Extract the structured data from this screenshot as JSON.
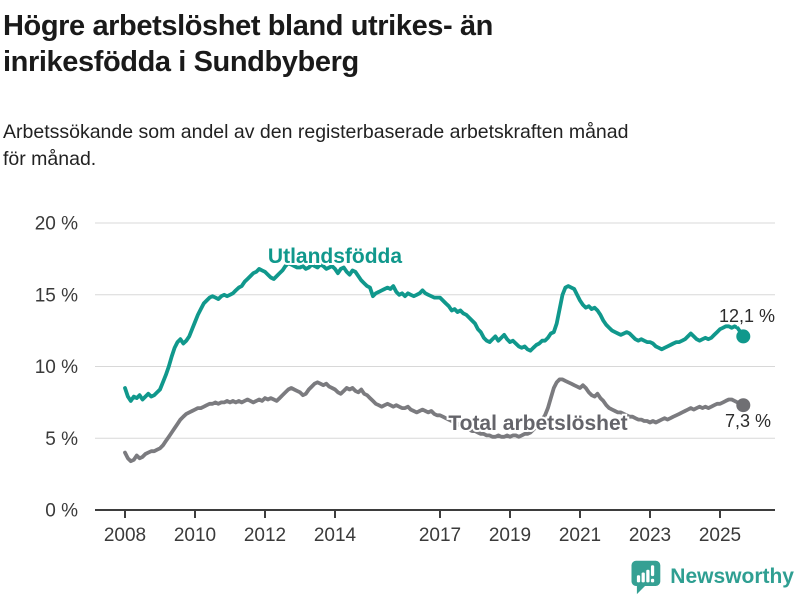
{
  "header": {
    "title_lines": [
      "Högre arbetslöshet bland utrikes- än",
      "inrikesfödda i Sundbyberg"
    ],
    "subtitle_lines": [
      "Arbetssökande som andel av den registerbaserade arbetskraften månad",
      "för månad."
    ]
  },
  "footer": {
    "brand": "Newsworthy",
    "logo_icon": "bar-chart-speech-bubble",
    "logo_color": "#35a093"
  },
  "colors": {
    "accent_teal": "#10988c",
    "gray_line": "#7b7b7f",
    "grid": "#d8d8d8",
    "axis": "#3d3d3d",
    "value_text": "#2b2b2b"
  },
  "chart_data": {
    "type": "line",
    "unit": "%",
    "x_range": [
      "2008-01",
      "2025-09"
    ],
    "points_per_year": 12,
    "ylim": [
      0,
      20
    ],
    "grid": "horizontal",
    "legend_position": "inline-labels",
    "x_axis": {
      "ticks": [
        {
          "year": 2008,
          "label": "2008"
        },
        {
          "year": 2010,
          "label": "2010"
        },
        {
          "year": 2012,
          "label": "2012"
        },
        {
          "year": 2014,
          "label": "2014"
        },
        {
          "year": 2017,
          "label": "2017"
        },
        {
          "year": 2019,
          "label": "2019"
        },
        {
          "year": 2021,
          "label": "2021"
        },
        {
          "year": 2023,
          "label": "2023"
        },
        {
          "year": 2025,
          "label": "2025"
        }
      ]
    },
    "y_axis": {
      "ticks": [
        {
          "value": 0,
          "label": "0 %"
        },
        {
          "value": 5,
          "label": "5 %"
        },
        {
          "value": 10,
          "label": "10 %"
        },
        {
          "value": 15,
          "label": "15 %"
        },
        {
          "value": 20,
          "label": "20 %"
        }
      ]
    },
    "series": [
      {
        "name": "Utlandsfödda",
        "color": "#10988c",
        "label_color": "#10988c",
        "dot_color": "#10988c",
        "end_label": "12,1 %",
        "end_value": 12.1,
        "values": [
          8.5,
          7.9,
          7.6,
          7.9,
          7.8,
          8.0,
          7.7,
          7.9,
          8.1,
          7.9,
          8.0,
          8.2,
          8.4,
          8.9,
          9.4,
          10.0,
          10.7,
          11.3,
          11.7,
          11.9,
          11.6,
          11.8,
          12.1,
          12.6,
          13.1,
          13.6,
          14.0,
          14.4,
          14.6,
          14.8,
          14.9,
          14.8,
          14.7,
          14.9,
          15.0,
          14.9,
          15.0,
          15.1,
          15.3,
          15.5,
          15.6,
          15.9,
          16.1,
          16.3,
          16.5,
          16.6,
          16.8,
          16.7,
          16.6,
          16.4,
          16.2,
          16.1,
          16.3,
          16.5,
          16.7,
          17.0,
          17.2,
          17.1,
          17.0,
          16.9,
          16.9,
          17.0,
          16.8,
          16.9,
          17.1,
          17.0,
          16.9,
          17.1,
          17.0,
          16.8,
          16.9,
          17.0,
          16.8,
          16.5,
          16.8,
          16.9,
          16.6,
          16.4,
          16.7,
          16.6,
          16.3,
          16.0,
          15.8,
          15.6,
          15.5,
          14.9,
          15.1,
          15.2,
          15.3,
          15.4,
          15.5,
          15.4,
          15.6,
          15.2,
          15.0,
          15.1,
          14.9,
          15.1,
          15.0,
          14.9,
          15.0,
          15.1,
          15.3,
          15.1,
          15.0,
          14.9,
          14.8,
          14.8,
          14.8,
          14.6,
          14.4,
          14.2,
          13.9,
          14.0,
          13.8,
          13.9,
          13.7,
          13.6,
          13.4,
          13.2,
          13.0,
          12.6,
          12.4,
          12.0,
          11.8,
          11.7,
          11.9,
          12.1,
          11.8,
          12.0,
          12.2,
          11.9,
          11.7,
          11.8,
          11.6,
          11.4,
          11.3,
          11.4,
          11.2,
          11.1,
          11.3,
          11.5,
          11.6,
          11.8,
          11.8,
          12.0,
          12.3,
          12.4,
          13.0,
          14.0,
          15.0,
          15.5,
          15.6,
          15.5,
          15.4,
          15.0,
          14.6,
          14.3,
          14.1,
          14.2,
          14.0,
          14.1,
          13.9,
          13.6,
          13.2,
          12.9,
          12.7,
          12.5,
          12.4,
          12.3,
          12.2,
          12.3,
          12.4,
          12.3,
          12.1,
          11.9,
          11.8,
          11.9,
          11.8,
          11.7,
          11.7,
          11.6,
          11.4,
          11.3,
          11.2,
          11.3,
          11.4,
          11.5,
          11.6,
          11.7,
          11.7,
          11.8,
          11.9,
          12.1,
          12.3,
          12.1,
          11.9,
          11.8,
          11.9,
          12.0,
          11.9,
          12.0,
          12.2,
          12.4,
          12.6,
          12.7,
          12.8,
          12.8,
          12.7,
          12.8,
          12.7,
          12.4,
          12.1
        ]
      },
      {
        "name": "Total arbetslöshet",
        "color": "#7b7b7f",
        "label_color": "#64646a",
        "dot_color": "#6f6f73",
        "end_label": "7,3 %",
        "end_value": 7.3,
        "values": [
          4.0,
          3.6,
          3.4,
          3.5,
          3.8,
          3.6,
          3.7,
          3.9,
          4.0,
          4.1,
          4.1,
          4.2,
          4.3,
          4.5,
          4.8,
          5.1,
          5.4,
          5.7,
          6.0,
          6.3,
          6.5,
          6.7,
          6.8,
          6.9,
          7.0,
          7.1,
          7.1,
          7.2,
          7.3,
          7.4,
          7.4,
          7.5,
          7.4,
          7.5,
          7.5,
          7.6,
          7.5,
          7.6,
          7.5,
          7.6,
          7.5,
          7.6,
          7.7,
          7.6,
          7.5,
          7.6,
          7.7,
          7.6,
          7.8,
          7.7,
          7.8,
          7.7,
          7.6,
          7.8,
          8.0,
          8.2,
          8.4,
          8.5,
          8.4,
          8.3,
          8.2,
          8.0,
          8.1,
          8.4,
          8.6,
          8.8,
          8.9,
          8.8,
          8.7,
          8.8,
          8.6,
          8.5,
          8.4,
          8.2,
          8.1,
          8.3,
          8.5,
          8.4,
          8.5,
          8.3,
          8.2,
          8.4,
          8.1,
          8.0,
          7.8,
          7.6,
          7.4,
          7.3,
          7.2,
          7.3,
          7.4,
          7.3,
          7.2,
          7.3,
          7.2,
          7.1,
          7.1,
          7.2,
          7.0,
          6.9,
          6.8,
          6.9,
          7.0,
          6.9,
          6.8,
          6.9,
          6.7,
          6.6,
          6.6,
          6.5,
          6.4,
          6.3,
          6.2,
          6.1,
          6.0,
          5.9,
          5.8,
          5.7,
          5.6,
          5.5,
          5.5,
          5.4,
          5.3,
          5.3,
          5.2,
          5.2,
          5.1,
          5.1,
          5.2,
          5.1,
          5.1,
          5.2,
          5.1,
          5.2,
          5.2,
          5.1,
          5.2,
          5.3,
          5.3,
          5.4,
          5.6,
          5.8,
          6.0,
          6.3,
          6.6,
          7.1,
          7.8,
          8.5,
          8.9,
          9.1,
          9.1,
          9.0,
          8.9,
          8.8,
          8.7,
          8.6,
          8.5,
          8.7,
          8.5,
          8.2,
          8.0,
          7.9,
          8.1,
          7.8,
          7.6,
          7.3,
          7.1,
          7.0,
          6.9,
          6.8,
          6.8,
          6.7,
          6.6,
          6.5,
          6.5,
          6.4,
          6.3,
          6.3,
          6.2,
          6.2,
          6.1,
          6.2,
          6.1,
          6.2,
          6.3,
          6.4,
          6.3,
          6.4,
          6.5,
          6.6,
          6.7,
          6.8,
          6.9,
          7.0,
          7.1,
          7.0,
          7.1,
          7.2,
          7.1,
          7.2,
          7.1,
          7.2,
          7.3,
          7.4,
          7.4,
          7.5,
          7.6,
          7.7,
          7.7,
          7.6,
          7.5,
          7.4,
          7.3
        ]
      }
    ]
  }
}
